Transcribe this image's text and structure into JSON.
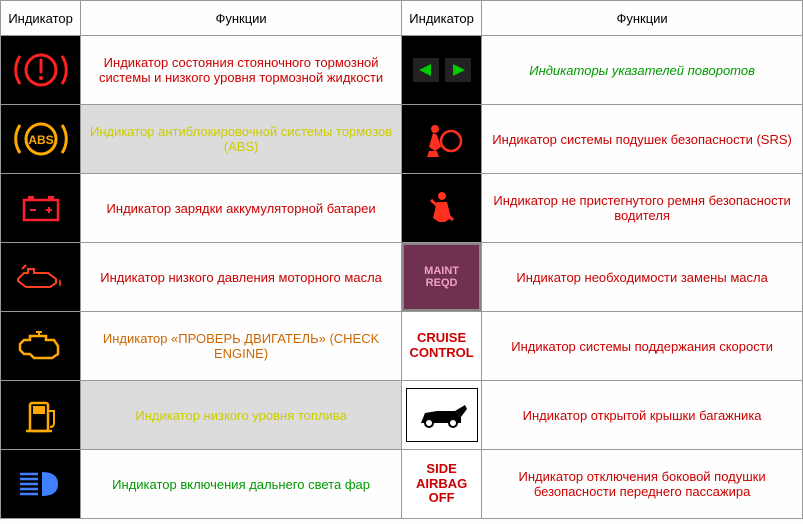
{
  "headers": {
    "indicator": "Индикатор",
    "function": "Функции"
  },
  "rows": [
    {
      "left": {
        "icon": "brake-warning",
        "func": "Индикатор состояния стояночного тормозной системы и низкого уровня тормозной жидкости",
        "color": "#cc0000",
        "shaded": false,
        "italic": false
      },
      "right": {
        "icon": "turn-signals",
        "func": "Индикаторы указателей поворотов",
        "color": "#009900",
        "shaded": false,
        "italic": true
      }
    },
    {
      "left": {
        "icon": "abs",
        "func": "Индикатор антиблокировочной системы тормозов (ABS)",
        "color": "#cccc00",
        "shaded": true,
        "italic": false
      },
      "right": {
        "icon": "airbag",
        "func": "Индикатор системы подушек безопасности (SRS)",
        "color": "#cc0000",
        "shaded": false,
        "italic": false
      }
    },
    {
      "left": {
        "icon": "battery",
        "func": "Индикатор зарядки аккумуляторной батареи",
        "color": "#cc0000",
        "shaded": false,
        "italic": false
      },
      "right": {
        "icon": "seatbelt",
        "func": "Индикатор не пристегнутого ремня безопасности водителя",
        "color": "#cc0000",
        "shaded": false,
        "italic": false
      }
    },
    {
      "left": {
        "icon": "oil",
        "func": "Индикатор низкого давления моторного масла",
        "color": "#cc0000",
        "shaded": false,
        "italic": false
      },
      "right": {
        "icon": "maint-reqd",
        "func": "Индикатор необходимости замены масла",
        "color": "#cc0000",
        "shaded": false,
        "italic": false
      }
    },
    {
      "left": {
        "icon": "check-engine",
        "func": "Индикатор «ПРОВЕРЬ ДВИГАТЕЛЬ» (CHECK ENGINE)",
        "color": "#cc6600",
        "shaded": false,
        "italic": false
      },
      "right": {
        "icon": "cruise-control",
        "func": "Индикатор системы поддержания скорости",
        "color": "#cc0000",
        "shaded": false,
        "italic": false
      }
    },
    {
      "left": {
        "icon": "fuel",
        "func": "Индикатор низкого уровня топлива",
        "color": "#cccc00",
        "shaded": true,
        "italic": false
      },
      "right": {
        "icon": "trunk-open",
        "func": "Индикатор открытой крышки багажника",
        "color": "#cc0000",
        "shaded": false,
        "italic": false
      }
    },
    {
      "left": {
        "icon": "high-beam",
        "func": "Индикатор включения дальнего света фар",
        "color": "#009900",
        "shaded": false,
        "italic": false
      },
      "right": {
        "icon": "side-airbag-off",
        "func": "Индикатор отключения боковой подушки безопасности переднего пассажира",
        "color": "#cc0000",
        "shaded": false,
        "italic": false
      }
    }
  ],
  "icon_text": {
    "cruise-control": "CRUISE\nCONTROL",
    "side-airbag-off": "SIDE\nAIRBAG\nOFF",
    "maint-reqd": "MAINT\nREQD"
  },
  "icon_colors": {
    "brake": "#ff2020",
    "abs": "#ffaa00",
    "battery": "#ff2030",
    "oil": "#ff4020",
    "engine": "#ffaa00",
    "fuel": "#ffaa00",
    "beam": "#4080ff",
    "turn": "#00cc00",
    "airbag": "#ff3020",
    "seatbelt": "#ff3020"
  }
}
